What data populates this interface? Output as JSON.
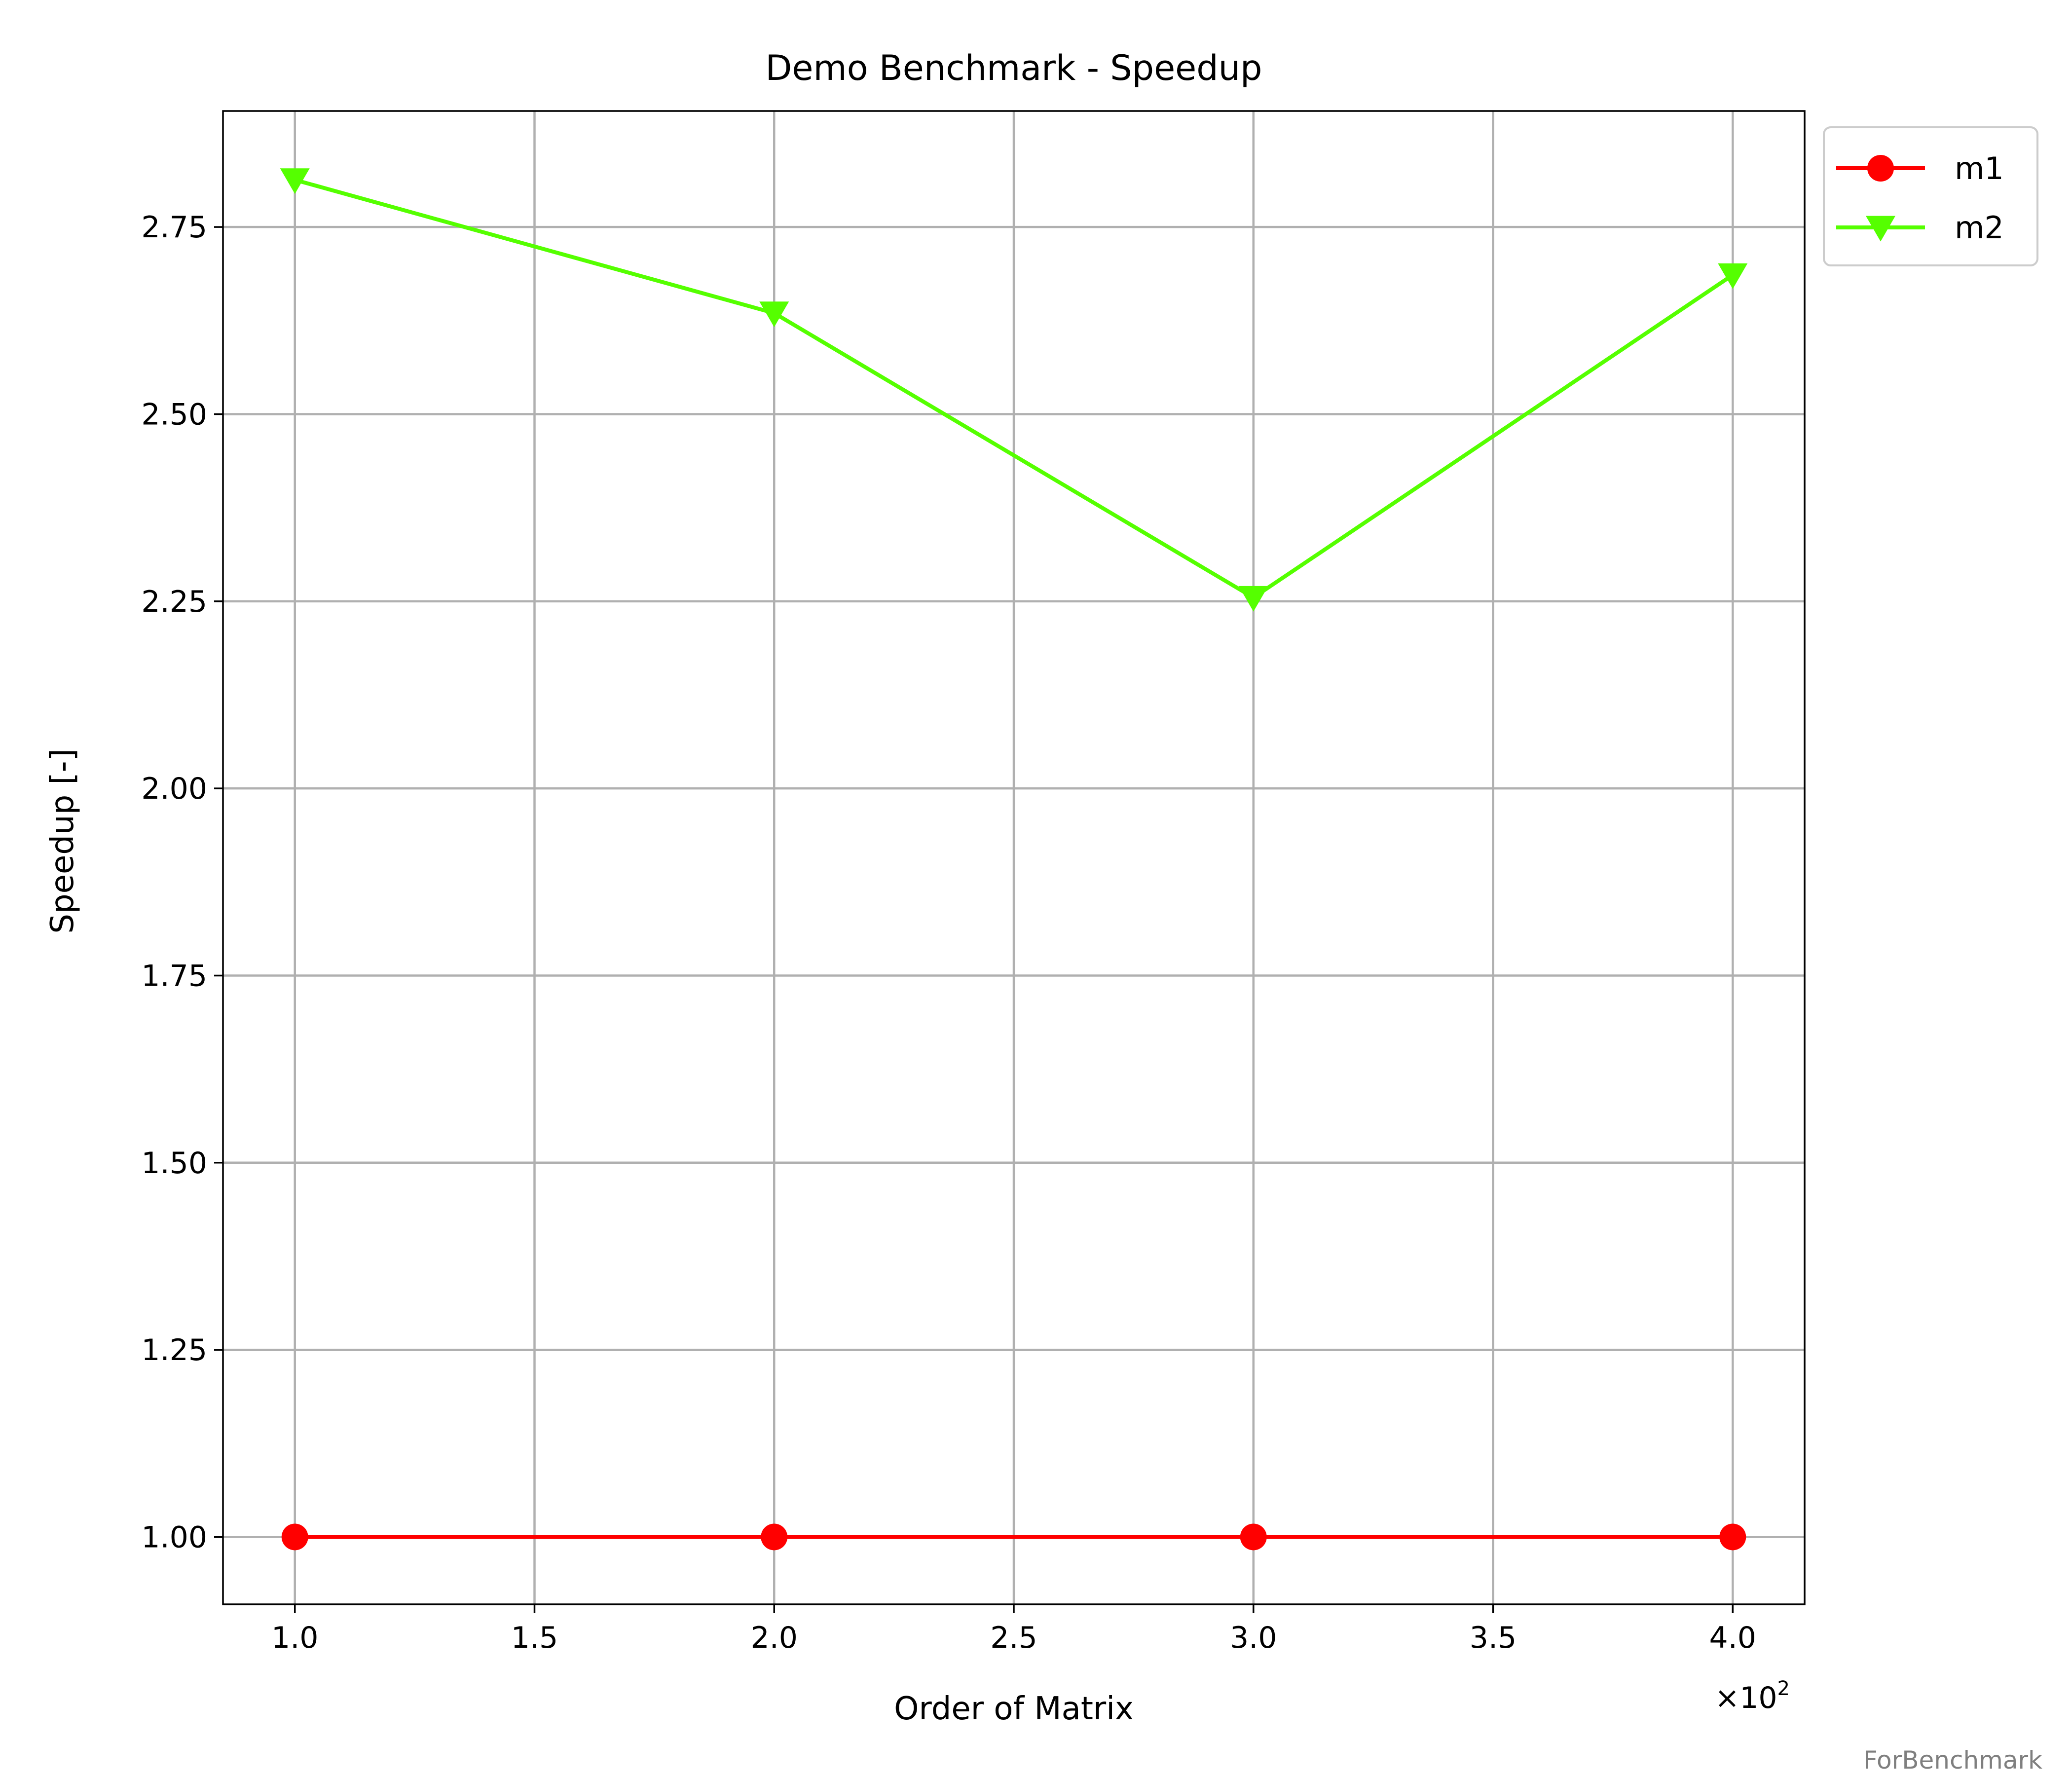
{
  "colors": {
    "m1": "#ff0000",
    "m2": "#55ff00",
    "grid": "#b0b0b0",
    "watermark": "#7f7f7f"
  },
  "chart_data": {
    "type": "line",
    "title": "Demo Benchmark - Speedup",
    "xlabel": "Order of Matrix",
    "ylabel": "Speedup [-]",
    "x_offset_label": "×10",
    "x_offset_exponent": "2",
    "x": [
      1.0,
      2.0,
      3.0,
      4.0
    ],
    "xlim": [
      0.85,
      4.15
    ],
    "ylim": [
      0.91,
      2.905
    ],
    "x_ticks": [
      1.0,
      1.5,
      2.0,
      2.5,
      3.0,
      3.5,
      4.0
    ],
    "x_tick_labels": [
      "1.0",
      "1.5",
      "2.0",
      "2.5",
      "3.0",
      "3.5",
      "4.0"
    ],
    "y_ticks": [
      1.0,
      1.25,
      1.5,
      1.75,
      2.0,
      2.25,
      2.5,
      2.75
    ],
    "y_tick_labels": [
      "1.00",
      "1.25",
      "1.50",
      "1.75",
      "2.00",
      "2.25",
      "2.50",
      "2.75"
    ],
    "grid": true,
    "legend_position": "outside top-right",
    "series": [
      {
        "name": "m1",
        "marker": "circle",
        "values": [
          1.0,
          1.0,
          1.0,
          1.0
        ]
      },
      {
        "name": "m2",
        "marker": "triangle-down",
        "values": [
          2.813,
          2.635,
          2.255,
          2.686
        ]
      }
    ]
  },
  "watermark": "ForBenchmark"
}
